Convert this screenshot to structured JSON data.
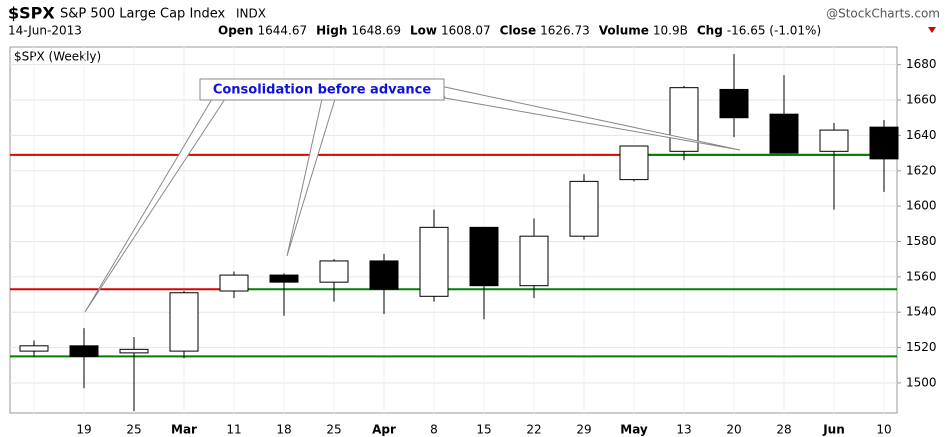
{
  "header": {
    "symbol": "$SPX",
    "name": "S&P 500 Large Cap Index",
    "exchange": "INDX",
    "source": "@StockCharts.com",
    "date": "14-Jun-2013",
    "open_label": "Open",
    "open": 1644.67,
    "high_label": "High",
    "high": 1648.69,
    "low_label": "Low",
    "low": 1608.07,
    "close_label": "Close",
    "close": 1626.73,
    "volume_label": "Volume",
    "volume": "10.9B",
    "chg_label": "Chg",
    "chg": "-16.65 (-1.01%)"
  },
  "chart_data": {
    "type": "candlestick",
    "title": "$SPX (Weekly)",
    "annotation": "Consolidation before advance",
    "categories": [
      null,
      "19",
      "25",
      "Mar",
      "11",
      "18",
      "25",
      "Apr",
      "8",
      "15",
      "22",
      "29",
      "May",
      "13",
      "20",
      "28",
      "Jun",
      "10"
    ],
    "open": [
      1518,
      1521,
      1517,
      1518,
      1552,
      1561,
      1557,
      1569,
      1549,
      1588,
      1555,
      1583,
      1615,
      1631,
      1666,
      1652,
      1631,
      1644.67
    ],
    "high": [
      1524,
      1531,
      1526,
      1552,
      1563,
      1562,
      1570,
      1573,
      1598,
      1588,
      1593,
      1618,
      1634,
      1668,
      1686,
      1674,
      1647,
      1648.69
    ],
    "low": [
      1515,
      1497,
      1484,
      1514,
      1548,
      1538,
      1546,
      1539,
      1546,
      1536,
      1548,
      1581,
      1614,
      1626,
      1639,
      1630,
      1598,
      1608.07
    ],
    "close": [
      1521,
      1515,
      1519,
      1551,
      1561,
      1557,
      1569,
      1553,
      1588,
      1555,
      1583,
      1614,
      1634,
      1667,
      1650,
      1630,
      1643,
      1626.73
    ],
    "up_color": "#ffffff",
    "down_color": "#000000",
    "hlines": [
      {
        "value": 1629,
        "color": "#e00000"
      },
      {
        "value": 1553,
        "color": "#e00000"
      },
      {
        "value": 1553,
        "color": "#008000"
      },
      {
        "value": 1629,
        "color": "#008000"
      },
      {
        "value": 1515,
        "color": "#008000"
      }
    ],
    "ylim": [
      1483,
      1690
    ],
    "yticks": [
      1500,
      1520,
      1540,
      1560,
      1580,
      1600,
      1620,
      1640,
      1660,
      1680
    ],
    "grid": true
  }
}
